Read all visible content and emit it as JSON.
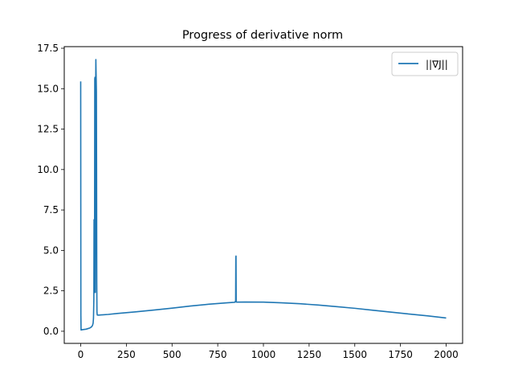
{
  "chart_data": {
    "type": "line",
    "title": "Progress of derivative norm",
    "xlabel": "",
    "ylabel": "",
    "xlim": [
      -90,
      2090
    ],
    "ylim": [
      -0.75,
      17.6
    ],
    "xticks": [
      0,
      250,
      500,
      750,
      1000,
      1250,
      1500,
      1750,
      2000
    ],
    "xtick_labels": [
      "0",
      "250",
      "500",
      "750",
      "1000",
      "1250",
      "1500",
      "1750",
      "2000"
    ],
    "yticks": [
      0.0,
      2.5,
      5.0,
      7.5,
      10.0,
      12.5,
      15.0,
      17.5
    ],
    "ytick_labels": [
      "0.0",
      "2.5",
      "5.0",
      "7.5",
      "10.0",
      "12.5",
      "15.0",
      "17.5"
    ],
    "grid": false,
    "legend_position": "top-right",
    "series": [
      {
        "name": "||∇J||",
        "color": "#1f77b4",
        "x": [
          0,
          1,
          2,
          10,
          30,
          50,
          60,
          65,
          68,
          70,
          72,
          73,
          74,
          75,
          76,
          77,
          78,
          79,
          80,
          81,
          82,
          83,
          84,
          85,
          86,
          87,
          88,
          89,
          90,
          91,
          92,
          93,
          94,
          100,
          150,
          200,
          250,
          300,
          400,
          500,
          600,
          700,
          800,
          840,
          845,
          848,
          849,
          850,
          851,
          852,
          853,
          855,
          900,
          1000,
          1100,
          1200,
          1300,
          1400,
          1500,
          1600,
          1700,
          1800,
          1900,
          2000
        ],
        "y": [
          15.45,
          1.0,
          0.08,
          0.1,
          0.13,
          0.2,
          0.28,
          0.37,
          0.5,
          0.8,
          2.0,
          6.9,
          3.0,
          2.4,
          6.0,
          15.6,
          15.7,
          14.0,
          2.4,
          6.0,
          15.0,
          16.8,
          16.1,
          15.5,
          14.8,
          10.0,
          3.0,
          1.2,
          1.05,
          1.0,
          1.0,
          1.0,
          1.0,
          1.0,
          1.04,
          1.1,
          1.15,
          1.2,
          1.31,
          1.43,
          1.56,
          1.67,
          1.76,
          1.79,
          1.8,
          1.9,
          4.6,
          4.65,
          1.85,
          1.8,
          1.8,
          1.8,
          1.81,
          1.8,
          1.76,
          1.7,
          1.62,
          1.52,
          1.42,
          1.3,
          1.18,
          1.06,
          0.95,
          0.82
        ]
      }
    ]
  }
}
